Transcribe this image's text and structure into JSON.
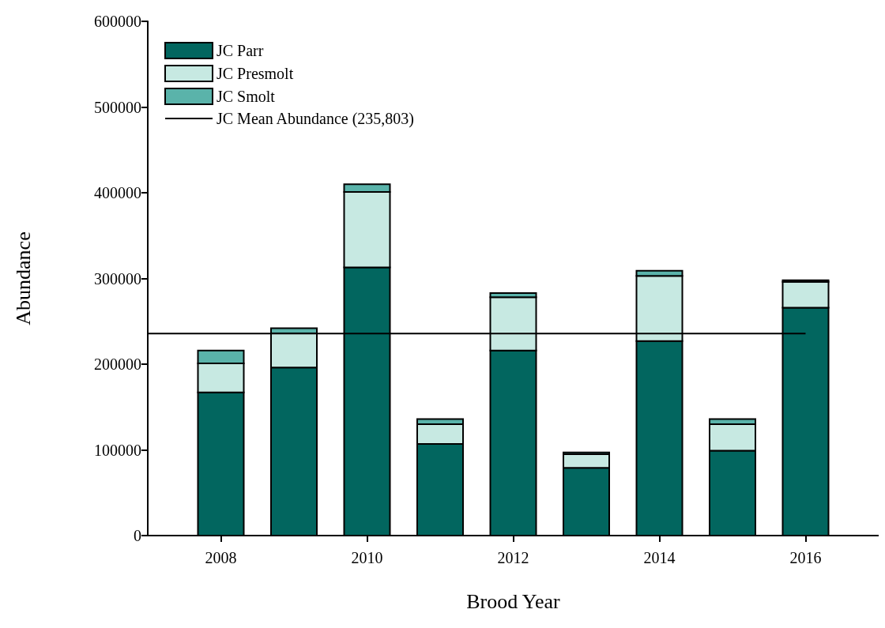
{
  "chart_data": {
    "type": "bar",
    "stacked": true,
    "xlabel": "Brood Year",
    "ylabel": "Abundance",
    "x": [
      2008,
      2009,
      2010,
      2011,
      2012,
      2013,
      2014,
      2015,
      2016
    ],
    "xlim": [
      2007,
      2017
    ],
    "xticks": [
      2008,
      2010,
      2012,
      2014,
      2016
    ],
    "ylim": [
      0,
      600000
    ],
    "yticks": [
      0,
      100000,
      200000,
      300000,
      400000,
      500000,
      600000
    ],
    "grid": false,
    "legend": "top left",
    "marker": "none",
    "series": [
      {
        "name": "JC Parr",
        "color": "#02665f",
        "values": [
          167000,
          196000,
          313000,
          107000,
          216000,
          79000,
          227000,
          99000,
          266000
        ]
      },
      {
        "name": "JC Presmolt",
        "color": "#c7e9e2",
        "values": [
          34000,
          40000,
          88000,
          23000,
          62000,
          16000,
          76000,
          31000,
          30000
        ]
      },
      {
        "name": "JC Smolt",
        "color": "#5ab3aa",
        "values": [
          15000,
          6000,
          9000,
          6000,
          5000,
          2000,
          6000,
          6000,
          2000
        ]
      },
      {
        "name": "JC Mean Abundance (235,803)",
        "type": "line",
        "color": "#000000",
        "x": [
          2007,
          2016
        ],
        "values": [
          235803,
          235803
        ]
      }
    ]
  }
}
